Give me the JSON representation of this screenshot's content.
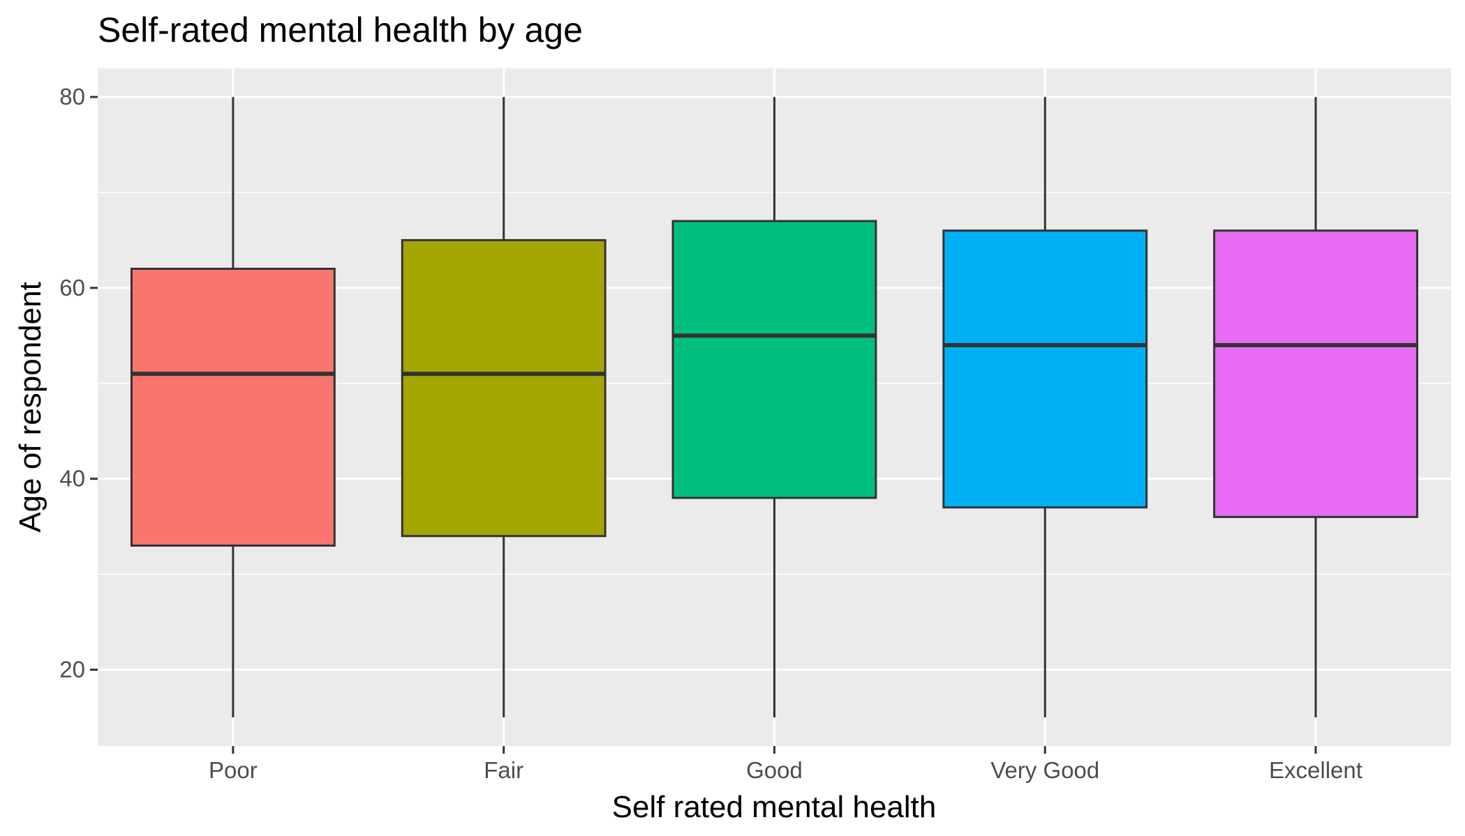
{
  "chart_data": {
    "type": "boxplot",
    "title": "Self-rated mental health by age",
    "xlabel": "Self rated mental health",
    "ylabel": "Age of respondent",
    "categories": [
      "Poor",
      "Fair",
      "Good",
      "Very Good",
      "Excellent"
    ],
    "ylim": [
      12,
      83
    ],
    "yticks": [
      20,
      40,
      60,
      80
    ],
    "y_minor_gridlines": [
      30,
      50,
      70
    ],
    "grid": true,
    "panel_background": "#ebebeb",
    "gridline_color": "#ffffff",
    "box_outline_color": "#333333",
    "tick_color": "#333333",
    "legend": "none",
    "boxes": [
      {
        "category": "Poor",
        "whisker_low": 15,
        "q1": 33,
        "median": 51,
        "q3": 62,
        "whisker_high": 80,
        "fill": "#F8766D"
      },
      {
        "category": "Fair",
        "whisker_low": 15,
        "q1": 34,
        "median": 51,
        "q3": 65,
        "whisker_high": 80,
        "fill": "#A3A500"
      },
      {
        "category": "Good",
        "whisker_low": 15,
        "q1": 38,
        "median": 55,
        "q3": 67,
        "whisker_high": 80,
        "fill": "#00BF7D"
      },
      {
        "category": "Very Good",
        "whisker_low": 15,
        "q1": 37,
        "median": 54,
        "q3": 66,
        "whisker_high": 80,
        "fill": "#00B0F6"
      },
      {
        "category": "Excellent",
        "whisker_low": 15,
        "q1": 36,
        "median": 54,
        "q3": 66,
        "whisker_high": 80,
        "fill": "#E76BF3"
      }
    ]
  }
}
